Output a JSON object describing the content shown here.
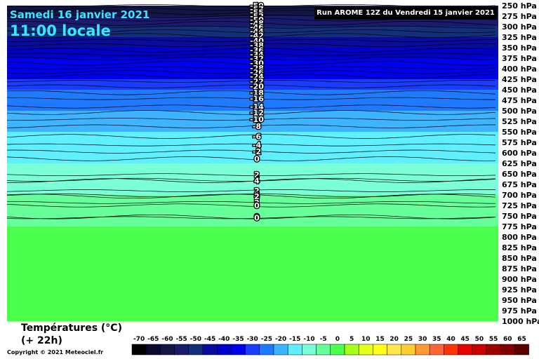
{
  "header": {
    "date": "Samedi 16 janvier 2021",
    "time": "11:00 locale",
    "run": "Run AROME 12Z du Vendredi 15 janvier 2021"
  },
  "footer": {
    "title": "Températures (°C)",
    "subtitle": "(+ 22h)",
    "copyright": "Copyright © 2021 Meteociel.fr"
  },
  "chart_data": {
    "type": "heatmap",
    "y_axis": {
      "unit": "hPa",
      "levels": [
        250,
        275,
        300,
        325,
        350,
        375,
        400,
        425,
        450,
        475,
        500,
        525,
        550,
        575,
        600,
        625,
        650,
        675,
        700,
        725,
        750,
        775,
        800,
        825,
        850,
        875,
        900,
        925,
        950,
        975,
        1000
      ],
      "range": [
        250,
        1000
      ]
    },
    "temperature_profile": [
      {
        "hpa": 250,
        "t": -59
      },
      {
        "hpa": 275,
        "t": -53
      },
      {
        "hpa": 300,
        "t": -48
      },
      {
        "hpa": 325,
        "t": -44
      },
      {
        "hpa": 350,
        "t": -40
      },
      {
        "hpa": 375,
        "t": -36
      },
      {
        "hpa": 400,
        "t": -33
      },
      {
        "hpa": 425,
        "t": -29
      },
      {
        "hpa": 450,
        "t": -26
      },
      {
        "hpa": 475,
        "t": -23
      },
      {
        "hpa": 500,
        "t": -20
      },
      {
        "hpa": 525,
        "t": -18
      },
      {
        "hpa": 550,
        "t": -16
      },
      {
        "hpa": 575,
        "t": -14
      },
      {
        "hpa": 600,
        "t": -12
      },
      {
        "hpa": 625,
        "t": -10
      },
      {
        "hpa": 650,
        "t": -8
      },
      {
        "hpa": 675,
        "t": -6
      },
      {
        "hpa": 700,
        "t": -5
      },
      {
        "hpa": 725,
        "t": -4
      },
      {
        "hpa": 750,
        "t": -2
      },
      {
        "hpa": 775,
        "t": 0
      },
      {
        "hpa": 800,
        "t": 1
      },
      {
        "hpa": 825,
        "t": 2
      },
      {
        "hpa": 850,
        "t": 3
      },
      {
        "hpa": 875,
        "t": 3
      },
      {
        "hpa": 900,
        "t": 2
      },
      {
        "hpa": 925,
        "t": 2
      },
      {
        "hpa": 950,
        "t": 1
      },
      {
        "hpa": 975,
        "t": 1
      },
      {
        "hpa": 1000,
        "t": 0
      }
    ],
    "contour_labels": [
      {
        "label": "-59",
        "hpa": 250
      },
      {
        "label": "-57",
        "hpa": 258
      },
      {
        "label": "-55",
        "hpa": 266
      },
      {
        "label": "-52",
        "hpa": 275
      },
      {
        "label": "-50",
        "hpa": 283
      },
      {
        "label": "-48",
        "hpa": 292
      },
      {
        "label": "-46",
        "hpa": 301
      },
      {
        "label": "-44",
        "hpa": 311
      },
      {
        "label": "-42",
        "hpa": 321
      },
      {
        "label": "-40",
        "hpa": 333
      },
      {
        "label": "-38",
        "hpa": 344
      },
      {
        "label": "-36",
        "hpa": 356
      },
      {
        "label": "-34",
        "hpa": 366
      },
      {
        "label": "-32",
        "hpa": 376
      },
      {
        "label": "-30",
        "hpa": 387
      },
      {
        "label": "-28",
        "hpa": 398
      },
      {
        "label": "-26",
        "hpa": 408
      },
      {
        "label": "-24",
        "hpa": 418
      },
      {
        "label": "-22",
        "hpa": 430
      },
      {
        "label": "-20",
        "hpa": 442
      },
      {
        "label": "-18",
        "hpa": 457
      },
      {
        "label": "-16",
        "hpa": 471
      },
      {
        "label": "-14",
        "hpa": 490
      },
      {
        "label": "-12",
        "hpa": 504
      },
      {
        "label": "-10",
        "hpa": 520
      },
      {
        "label": "-8",
        "hpa": 537
      },
      {
        "label": "-6",
        "hpa": 561
      },
      {
        "label": "-4",
        "hpa": 581
      },
      {
        "label": "-2",
        "hpa": 597
      },
      {
        "label": "0",
        "hpa": 614
      },
      {
        "label": "2",
        "hpa": 652
      },
      {
        "label": "4",
        "hpa": 664
      },
      {
        "label": "4",
        "hpa": 666
      },
      {
        "label": "2",
        "hpa": 690
      },
      {
        "label": "4",
        "hpa": 701
      },
      {
        "label": "2",
        "hpa": 703
      },
      {
        "label": "2",
        "hpa": 718
      },
      {
        "label": "0",
        "hpa": 725
      },
      {
        "label": "0",
        "hpa": 752
      },
      {
        "label": "0",
        "hpa": 754
      }
    ],
    "colorbar": {
      "ticks": [
        -70,
        -65,
        -60,
        -55,
        -50,
        -45,
        -40,
        -35,
        -30,
        -25,
        -20,
        -15,
        -10,
        -5,
        0,
        5,
        10,
        15,
        20,
        25,
        30,
        35,
        40,
        45,
        50,
        55,
        60,
        65
      ],
      "colors": [
        "#000000",
        "#0a0a2e",
        "#151545",
        "#1a1a6e",
        "#12307a",
        "#0a0a9e",
        "#0000c8",
        "#0000f0",
        "#1a3cff",
        "#1f7aff",
        "#3cb4ff",
        "#5ef0ff",
        "#7affd8",
        "#66ff99",
        "#4dff4d",
        "#a6ff1a",
        "#e6ff1a",
        "#ffff1a",
        "#ffe64d",
        "#ffcc33",
        "#ff9933",
        "#ff6633",
        "#ff3300",
        "#e60000",
        "#c80000",
        "#a00000",
        "#800000",
        "#5a0000"
      ]
    },
    "grid": false
  }
}
